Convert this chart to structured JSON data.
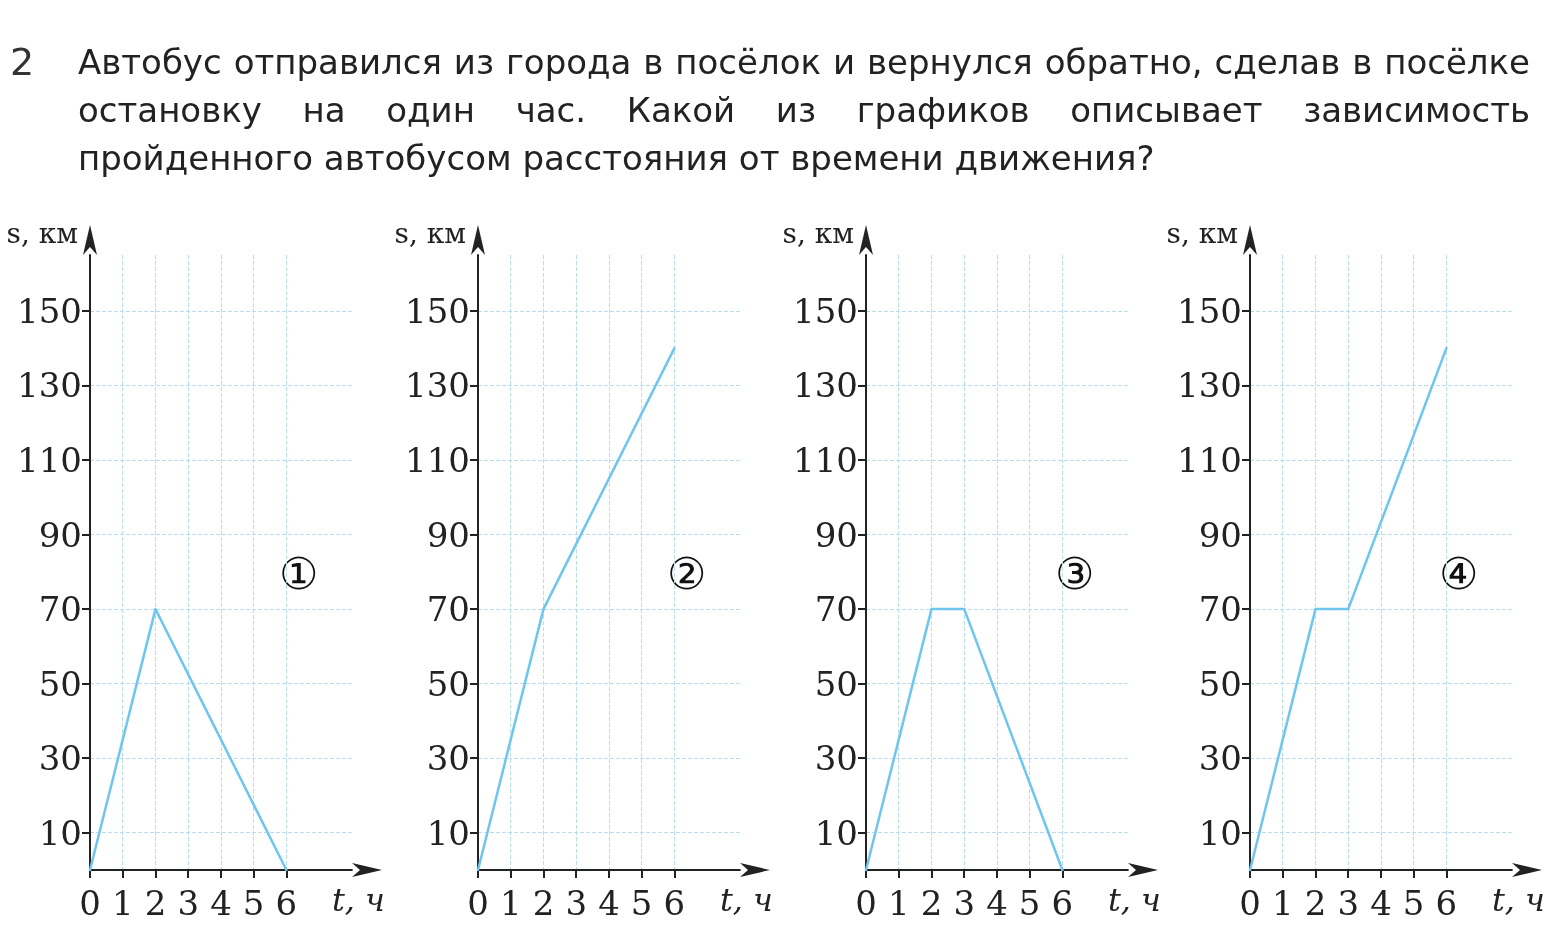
{
  "chart_data": [
    {
      "type": "other",
      "title": "Автобус отправился из города в посёлок и вернулся обратно, сделав в посёлке остановку на один час. Какой из графиков описывает зависимость пройденного автобусом расстояния от времени движения?",
      "annotations": [
        "2"
      ]
    },
    {
      "type": "line",
      "xlabel": "t, ч",
      "ylabel": "s, км",
      "x": [
        0,
        2,
        6
      ],
      "values": [
        0,
        70,
        0
      ],
      "color": "#6ec6f0",
      "marker": "none",
      "xlim": [
        0,
        8
      ],
      "ylim": [
        0,
        165
      ],
      "xticks": [
        0,
        1,
        2,
        3,
        4,
        5,
        6
      ],
      "yticks": [
        10,
        30,
        50,
        70,
        90,
        110,
        130,
        150
      ],
      "grid": true,
      "annotations": [
        "①"
      ]
    },
    {
      "type": "line",
      "xlabel": "t, ч",
      "ylabel": "s, км",
      "x": [
        0,
        2,
        6
      ],
      "values": [
        0,
        70,
        140
      ],
      "color": "#6ec6f0",
      "marker": "none",
      "xlim": [
        0,
        8
      ],
      "ylim": [
        0,
        165
      ],
      "xticks": [
        0,
        1,
        2,
        3,
        4,
        5,
        6
      ],
      "yticks": [
        10,
        30,
        50,
        70,
        90,
        110,
        130,
        150
      ],
      "grid": true,
      "annotations": [
        "②"
      ]
    },
    {
      "type": "line",
      "xlabel": "t, ч",
      "ylabel": "s, км",
      "x": [
        0,
        2,
        3,
        6
      ],
      "values": [
        0,
        70,
        70,
        0
      ],
      "color": "#6ec6f0",
      "marker": "none",
      "xlim": [
        0,
        8
      ],
      "ylim": [
        0,
        165
      ],
      "xticks": [
        0,
        1,
        2,
        3,
        4,
        5,
        6
      ],
      "yticks": [
        10,
        30,
        50,
        70,
        90,
        110,
        130,
        150
      ],
      "grid": true,
      "annotations": [
        "③"
      ]
    },
    {
      "type": "line",
      "xlabel": "t, ч",
      "ylabel": "s, км",
      "x": [
        0,
        2,
        3,
        6
      ],
      "values": [
        0,
        70,
        70,
        140
      ],
      "color": "#6ec6f0",
      "marker": "none",
      "xlim": [
        0,
        8
      ],
      "ylim": [
        0,
        165
      ],
      "xticks": [
        0,
        1,
        2,
        3,
        4,
        5,
        6
      ],
      "yticks": [
        10,
        30,
        50,
        70,
        90,
        110,
        130,
        150
      ],
      "grid": true,
      "annotations": [
        "④"
      ]
    }
  ]
}
